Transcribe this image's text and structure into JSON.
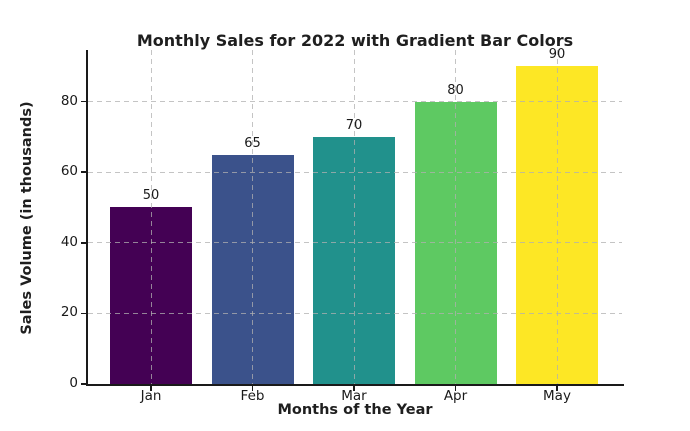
{
  "chart_data": {
    "type": "bar",
    "title": "Monthly Sales for 2022 with Gradient Bar Colors",
    "xlabel": "Months of the Year",
    "ylabel": "Sales Volume (in thousands)",
    "categories": [
      "Jan",
      "Feb",
      "Mar",
      "Apr",
      "May"
    ],
    "values": [
      50,
      65,
      70,
      80,
      90
    ],
    "bar_labels": [
      "50",
      "65",
      "70",
      "80",
      "90"
    ],
    "bar_colors": [
      "#440154",
      "#3b528b",
      "#21918c",
      "#5ec962",
      "#fde725"
    ],
    "y_ticks": [
      0,
      20,
      40,
      60,
      80
    ],
    "ylim": [
      0,
      94.6
    ],
    "grid": "dashed",
    "grid_color": "#b0b0b0",
    "grid_over_bars": true,
    "legend": null
  }
}
